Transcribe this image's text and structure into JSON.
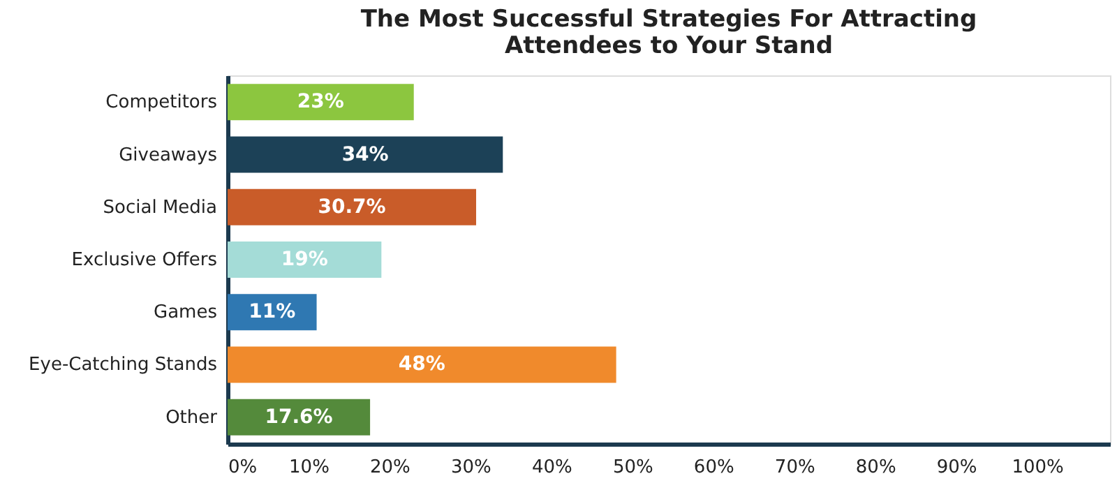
{
  "chart_data": {
    "type": "bar",
    "orientation": "horizontal",
    "title": [
      "The Most Successful Strategies For Attracting",
      "Attendees to Your Stand"
    ],
    "categories": [
      "Competitors",
      "Giveaways",
      "Social Media",
      "Exclusive Offers",
      "Games",
      "Eye-Catching Stands",
      "Other"
    ],
    "values": [
      23,
      34,
      30.7,
      19,
      11,
      48,
      17.6
    ],
    "value_labels": [
      "23%",
      "34%",
      "30.7%",
      "19%",
      "11%",
      "48%",
      "17.6%"
    ],
    "colors": [
      "#8cc63f",
      "#1c4157",
      "#c95c29",
      "#a4dcd7",
      "#2f78b2",
      "#f08a2c",
      "#548a3b"
    ],
    "xlim": [
      0,
      109
    ],
    "xticks": [
      {
        "value": 0,
        "label": "0%"
      },
      {
        "value": 10,
        "label": "10%"
      },
      {
        "value": 20,
        "label": "20%"
      },
      {
        "value": 30,
        "label": "30%"
      },
      {
        "value": 40,
        "label": "40%"
      },
      {
        "value": 50,
        "label": "50%"
      },
      {
        "value": 60,
        "label": "60%"
      },
      {
        "value": 70,
        "label": "70%"
      },
      {
        "value": 80,
        "label": "80%"
      },
      {
        "value": 90,
        "label": "90%"
      },
      {
        "value": 100,
        "label": "100%"
      }
    ],
    "grid": false,
    "legend": false
  }
}
